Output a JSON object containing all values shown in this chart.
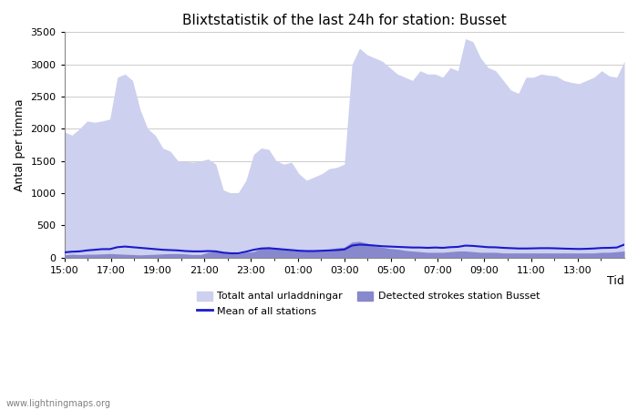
{
  "title": "Blixtstatistik of the last 24h for station: Busset",
  "xlabel": "Tid",
  "ylabel": "Antal per timma",
  "ylim": [
    0,
    3500
  ],
  "yticks": [
    0,
    500,
    1000,
    1500,
    2000,
    2500,
    3000,
    3500
  ],
  "xtick_labels": [
    "15:00",
    "17:00",
    "19:00",
    "21:00",
    "23:00",
    "01:00",
    "03:00",
    "05:00",
    "07:00",
    "09:00",
    "11:00",
    "13:00"
  ],
  "color_total": "#cdd0ee",
  "color_station": "#8888cc",
  "color_mean": "#1a1acc",
  "watermark": "www.lightningmaps.org",
  "legend_total": "Totalt antal urladdningar",
  "legend_station": "Detected strokes station Busset",
  "legend_mean": "Mean of all stations",
  "total_values": [
    1950,
    1900,
    2000,
    2120,
    2100,
    2120,
    2150,
    2800,
    2850,
    2750,
    2300,
    2000,
    1900,
    1700,
    1650,
    1500,
    1490,
    1480,
    1500,
    1530,
    1450,
    1050,
    1000,
    1010,
    1200,
    1600,
    1700,
    1680,
    1500,
    1450,
    1480,
    1300,
    1200,
    1250,
    1300,
    1380,
    1400,
    1450,
    3000,
    3250,
    3150,
    3100,
    3050,
    2950,
    2850,
    2800,
    2750,
    2900,
    2850,
    2850,
    2800,
    2950,
    2900,
    3400,
    3350,
    3100,
    2950,
    2900,
    2750,
    2600,
    2550,
    2800,
    2800,
    2850,
    2830,
    2820,
    2750,
    2720,
    2700,
    2750,
    2800,
    2900,
    2820,
    2800,
    3050
  ],
  "station_values": [
    40,
    50,
    45,
    50,
    50,
    55,
    60,
    55,
    50,
    45,
    40,
    45,
    50,
    55,
    60,
    60,
    55,
    45,
    45,
    80,
    90,
    80,
    60,
    55,
    80,
    90,
    140,
    160,
    150,
    130,
    110,
    100,
    105,
    110,
    115,
    130,
    150,
    160,
    240,
    250,
    220,
    180,
    160,
    140,
    130,
    110,
    100,
    90,
    80,
    80,
    80,
    90,
    100,
    100,
    90,
    80,
    80,
    80,
    70,
    70,
    70,
    70,
    70,
    70,
    70,
    70,
    70,
    70,
    70,
    70,
    70,
    80,
    80,
    90,
    100
  ],
  "mean_values": [
    80,
    90,
    95,
    110,
    120,
    130,
    130,
    160,
    170,
    160,
    150,
    140,
    130,
    120,
    115,
    110,
    100,
    95,
    95,
    100,
    95,
    75,
    65,
    65,
    90,
    120,
    140,
    145,
    135,
    125,
    115,
    105,
    100,
    100,
    105,
    110,
    115,
    125,
    185,
    200,
    195,
    185,
    175,
    170,
    165,
    160,
    155,
    155,
    150,
    155,
    150,
    160,
    165,
    185,
    180,
    170,
    160,
    158,
    150,
    145,
    140,
    140,
    142,
    145,
    145,
    142,
    138,
    135,
    132,
    135,
    140,
    148,
    150,
    155,
    200
  ]
}
